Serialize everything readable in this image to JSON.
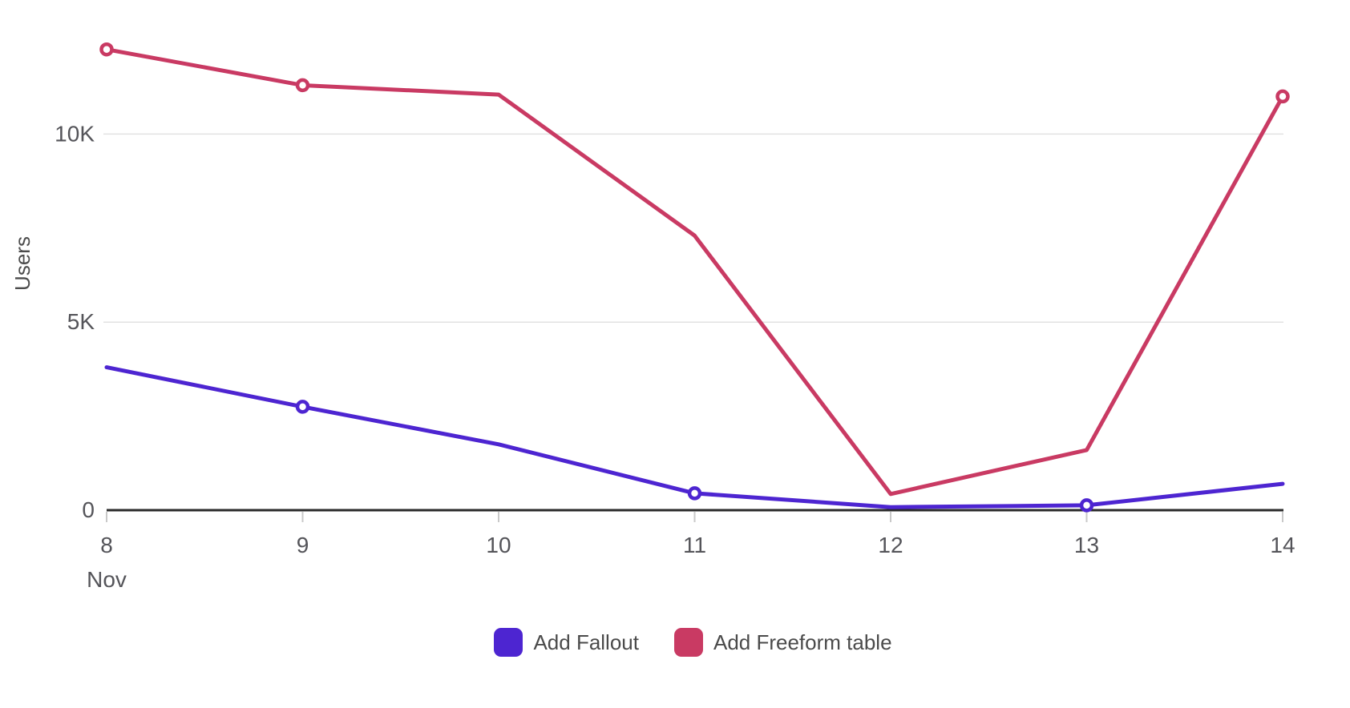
{
  "chart_data": {
    "type": "line",
    "title": "",
    "ylabel": "Users",
    "x_axis": {
      "month_label": "Nov",
      "tick_labels": [
        "8",
        "9",
        "10",
        "11",
        "12",
        "13",
        "14"
      ]
    },
    "y_axis": {
      "ticks": [
        {
          "value": 0,
          "label": "0"
        },
        {
          "value": 5000,
          "label": "5K"
        },
        {
          "value": 10000,
          "label": "10K"
        }
      ],
      "range": [
        0,
        13500
      ]
    },
    "grid": "horizontal",
    "legend_position": "bottom",
    "categories": [
      "Nov 8",
      "Nov 9",
      "Nov 10",
      "Nov 11",
      "Nov 12",
      "Nov 13",
      "Nov 14"
    ],
    "series": [
      {
        "name": "Add Fallout",
        "color": "#4D25D1",
        "values": [
          3800,
          2750,
          1750,
          450,
          80,
          130,
          700
        ],
        "marker_indices": [
          1,
          3,
          5
        ]
      },
      {
        "name": "Add Freeform table",
        "color": "#C93A63",
        "values": [
          12250,
          11300,
          11050,
          7300,
          430,
          1600,
          11000
        ],
        "marker_indices": [
          0,
          1,
          6
        ]
      }
    ]
  }
}
